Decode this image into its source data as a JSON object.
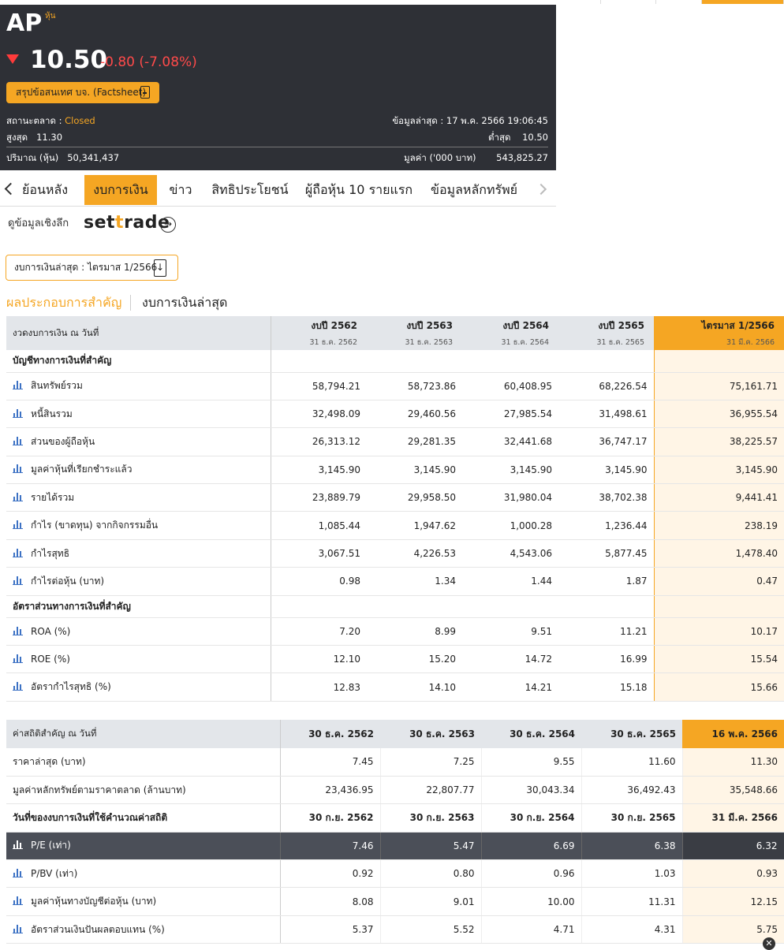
{
  "quote": {
    "symbol": "AP",
    "symbol_tag": "หุ้น",
    "price": "10.50",
    "change": "-0.80 (-7.08%)",
    "factsheet_label": "สรุปข้อสนเทศ บจ. (Factsheet)",
    "market_status_label": "สถานะตลาด :",
    "market_status": "Closed",
    "last_update": "ข้อมูลล่าสุด : 17 พ.ค. 2566 19:06:45",
    "high_label": "สูงสุด",
    "high": "11.30",
    "low_label": "ต่ำสุด",
    "low": "10.50",
    "volume_label": "ปริมาณ (หุ้น)",
    "volume": "50,341,437",
    "value_label": "มูลค่า ('000 บาท)",
    "value": "543,825.27",
    "colors": {
      "down": "#ff4a4a",
      "accent": "#f5a623",
      "header_bg": "#2e3036"
    }
  },
  "tabs": [
    {
      "label": "ย้อนหลัง"
    },
    {
      "label": "งบการเงิน"
    },
    {
      "label": "ข่าว"
    },
    {
      "label": "สิทธิประโยชน์"
    },
    {
      "label": "ผู้ถือหุ้น 10 รายแรก"
    },
    {
      "label": "ข้อมูลหลักทรัพย์"
    }
  ],
  "deep_label": "ดูข้อมูลเชิงลึก",
  "settrade": {
    "pre": "set",
    "mid": "t",
    "post": "rade"
  },
  "latest_statement": "งบการเงินล่าสุด : ไตรมาส 1/2566",
  "subtabs": {
    "active": "ผลประกอบการสำคัญ",
    "other": "งบการเงินล่าสุด"
  },
  "table1": {
    "header_first": "งวดงบการเงิน ณ วันที่",
    "columns": [
      {
        "title": "งบปี 2562",
        "date": "31 ธ.ค. 2562"
      },
      {
        "title": "งบปี 2563",
        "date": "31 ธ.ค. 2563"
      },
      {
        "title": "งบปี 2564",
        "date": "31 ธ.ค. 2564"
      },
      {
        "title": "งบปี 2565",
        "date": "31 ธ.ค. 2565"
      },
      {
        "title": "ไตรมาส 1/2566",
        "date": "31 มี.ค. 2566"
      }
    ],
    "section1": "บัญชีทางการเงินที่สำคัญ",
    "rows1": [
      {
        "label": "สินทรัพย์รวม",
        "v": [
          "58,794.21",
          "58,723.86",
          "60,408.95",
          "68,226.54",
          "75,161.71"
        ]
      },
      {
        "label": "หนี้สินรวม",
        "v": [
          "32,498.09",
          "29,460.56",
          "27,985.54",
          "31,498.61",
          "36,955.54"
        ]
      },
      {
        "label": "ส่วนของผู้ถือหุ้น",
        "v": [
          "26,313.12",
          "29,281.35",
          "32,441.68",
          "36,747.17",
          "38,225.57"
        ]
      },
      {
        "label": "มูลค่าหุ้นที่เรียกชำระแล้ว",
        "v": [
          "3,145.90",
          "3,145.90",
          "3,145.90",
          "3,145.90",
          "3,145.90"
        ]
      },
      {
        "label": "รายได้รวม",
        "v": [
          "23,889.79",
          "29,958.50",
          "31,980.04",
          "38,702.38",
          "9,441.41"
        ]
      },
      {
        "label": "กำไร (ขาดทุน) จากกิจกรรมอื่น",
        "v": [
          "1,085.44",
          "1,947.62",
          "1,000.28",
          "1,236.44",
          "238.19"
        ]
      },
      {
        "label": "กำไรสุทธิ",
        "v": [
          "3,067.51",
          "4,226.53",
          "4,543.06",
          "5,877.45",
          "1,478.40"
        ]
      },
      {
        "label": "กำไรต่อหุ้น (บาท)",
        "v": [
          "0.98",
          "1.34",
          "1.44",
          "1.87",
          "0.47"
        ]
      }
    ],
    "section2": "อัตราส่วนทางการเงินที่สำคัญ",
    "rows2": [
      {
        "label": "ROA (%)",
        "v": [
          "7.20",
          "8.99",
          "9.51",
          "11.21",
          "10.17"
        ]
      },
      {
        "label": "ROE (%)",
        "v": [
          "12.10",
          "15.20",
          "14.72",
          "16.99",
          "15.54"
        ]
      },
      {
        "label": "อัตรากำไรสุทธิ (%)",
        "v": [
          "12.83",
          "14.10",
          "14.21",
          "15.18",
          "15.66"
        ]
      }
    ]
  },
  "table2": {
    "header_first": "ค่าสถิติสำคัญ ณ วันที่",
    "columns": [
      "30 ธ.ค. 2562",
      "30 ธ.ค. 2563",
      "30 ธ.ค. 2564",
      "30 ธ.ค. 2565",
      "16 พ.ค. 2566"
    ],
    "rows_top": [
      {
        "label": "ราคาล่าสุด (บาท)",
        "v": [
          "7.45",
          "7.25",
          "9.55",
          "11.60",
          "11.30"
        ]
      },
      {
        "label": "มูลค่าหลักทรัพย์ตามราคาตลาด (ล้านบาท)",
        "v": [
          "23,436.95",
          "22,807.77",
          "30,043.34",
          "36,492.43",
          "35,548.66"
        ]
      }
    ],
    "date_row": {
      "label": "วันที่ของงบการเงินที่ใช้คำนวณค่าสถิติ",
      "v": [
        "30 ก.ย. 2562",
        "30 ก.ย. 2563",
        "30 ก.ย. 2564",
        "30 ก.ย. 2565",
        "31 มี.ค. 2566"
      ]
    },
    "rows_chart": [
      {
        "label": "P/E (เท่า)",
        "v": [
          "7.46",
          "5.47",
          "6.69",
          "6.38",
          "6.32"
        ]
      },
      {
        "label": "P/BV (เท่า)",
        "v": [
          "0.92",
          "0.80",
          "0.96",
          "1.03",
          "0.93"
        ]
      },
      {
        "label": "มูลค่าหุ้นทางบัญชีต่อหุ้น (บาท)",
        "v": [
          "8.08",
          "9.01",
          "10.00",
          "11.31",
          "12.15"
        ]
      },
      {
        "label": "อัตราส่วนเงินปันผลตอบแทน (%)",
        "v": [
          "5.37",
          "5.52",
          "4.71",
          "4.31",
          "5.75"
        ]
      }
    ]
  },
  "close_label": "✕"
}
